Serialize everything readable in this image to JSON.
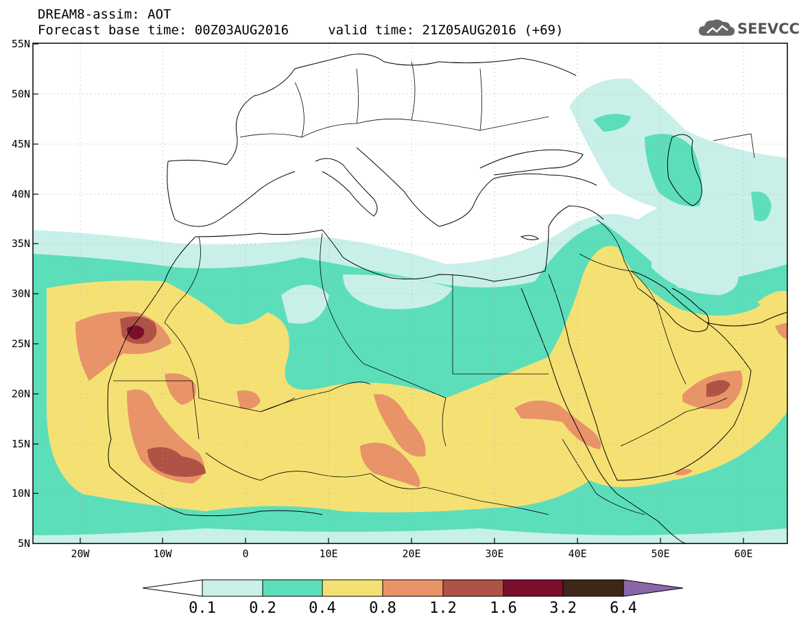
{
  "header": {
    "title": "DREAM8-assim: AOT",
    "forecast": "Forecast base time: 00Z03AUG2016     valid time: 21Z05AUG2016 (+69)"
  },
  "logo": {
    "text": "SEEVCCC"
  },
  "axes": {
    "lat_labels": [
      "55N",
      "50N",
      "45N",
      "40N",
      "35N",
      "30N",
      "25N",
      "20N",
      "15N",
      "10N",
      "5N"
    ],
    "lon_labels": [
      "20W",
      "10W",
      "0",
      "10E",
      "20E",
      "30E",
      "40E",
      "50E",
      "60E"
    ]
  },
  "colorbar": {
    "labels": [
      "0.1",
      "0.2",
      "0.4",
      "0.8",
      "1.2",
      "1.6",
      "3.2",
      "6.4"
    ],
    "colors": [
      "#ffffff",
      "#c8f0e8",
      "#5ddeba",
      "#f5e173",
      "#e89468",
      "#b05245",
      "#7b0f2b",
      "#3e2618",
      "#8a68a8"
    ]
  }
}
